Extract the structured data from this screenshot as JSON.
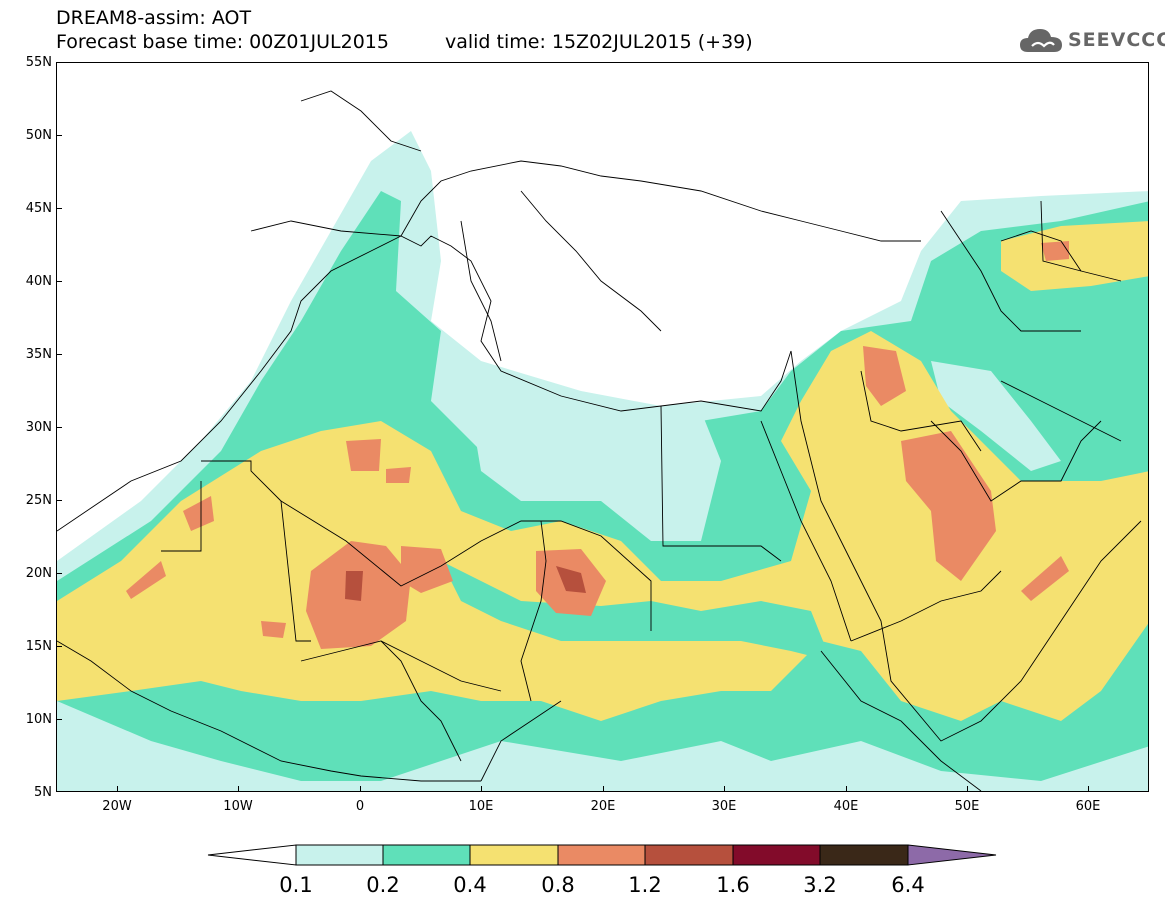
{
  "header": {
    "title_line1": "DREAM8-assim: AOT",
    "forecast_base": "Forecast base time: 00Z01JUL2015",
    "valid_time": "valid time: 15Z02JUL2015 (+39)"
  },
  "logo": {
    "text": "SEEVCCC",
    "icon": "cloud-icon"
  },
  "map": {
    "lon_range": [
      -25,
      65
    ],
    "lat_range": [
      5,
      55
    ],
    "y_ticks": [
      "55N",
      "50N",
      "45N",
      "40N",
      "35N",
      "30N",
      "25N",
      "20N",
      "15N",
      "10N",
      "5N"
    ],
    "x_ticks": [
      "20W",
      "10W",
      "0",
      "10E",
      "20E",
      "30E",
      "40E",
      "50E",
      "60E"
    ]
  },
  "colorbar": {
    "levels": [
      "0.1",
      "0.2",
      "0.4",
      "0.8",
      "1.2",
      "1.6",
      "3.2",
      "6.4"
    ],
    "colors": [
      "#c8f2ec",
      "#5fe0b9",
      "#f5e171",
      "#ea8a64",
      "#b6503d",
      "#820b2a",
      "#3a2818"
    ],
    "under_color": "#ffffff",
    "over_color": "#8d6aa8"
  }
}
